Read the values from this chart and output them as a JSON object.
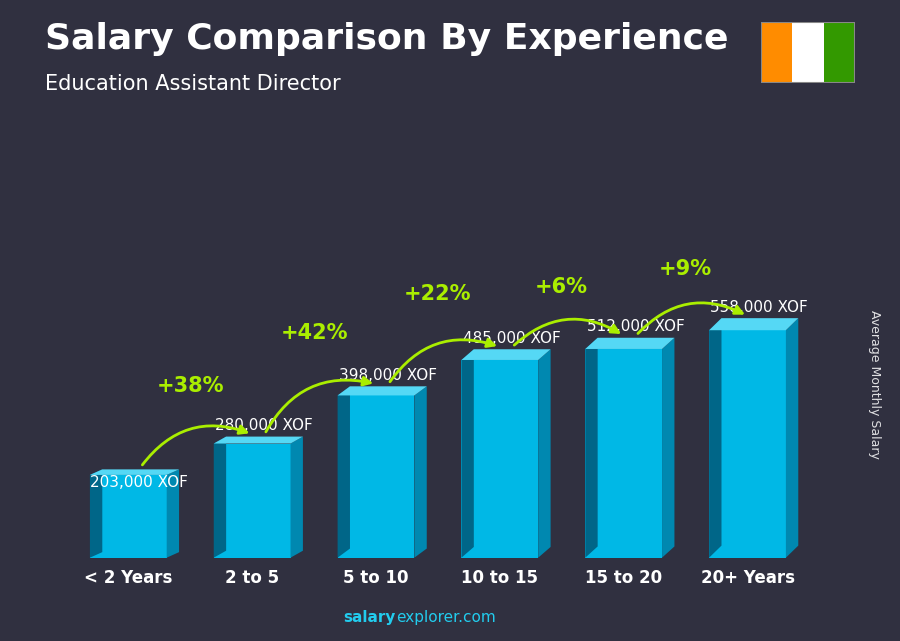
{
  "title": "Salary Comparison By Experience",
  "subtitle": "Education Assistant Director",
  "categories": [
    "< 2 Years",
    "2 to 5",
    "5 to 10",
    "10 to 15",
    "15 to 20",
    "20+ Years"
  ],
  "values": [
    203000,
    280000,
    398000,
    485000,
    512000,
    558000
  ],
  "labels": [
    "203,000 XOF",
    "280,000 XOF",
    "398,000 XOF",
    "485,000 XOF",
    "512,000 XOF",
    "558,000 XOF"
  ],
  "pct_changes": [
    null,
    "+38%",
    "+42%",
    "+22%",
    "+6%",
    "+9%"
  ],
  "bar_front": "#00b8e6",
  "bar_top": "#55d8f5",
  "bar_side": "#0088b0",
  "bar_left": "#007fa8",
  "bg_dark": "#2a2a3a",
  "text_color": "#ffffff",
  "pct_color": "#aaee00",
  "ylabel": "Average Monthly Salary",
  "footer_bold": "salary",
  "footer_normal": "explorer.com",
  "flag_colors": [
    "#FF8C00",
    "#FFFFFF",
    "#339900"
  ],
  "title_fontsize": 26,
  "subtitle_fontsize": 15,
  "label_fontsize": 11,
  "pct_fontsize": 15,
  "cat_fontsize": 12,
  "ylabel_fontsize": 9,
  "footer_fontsize": 11
}
